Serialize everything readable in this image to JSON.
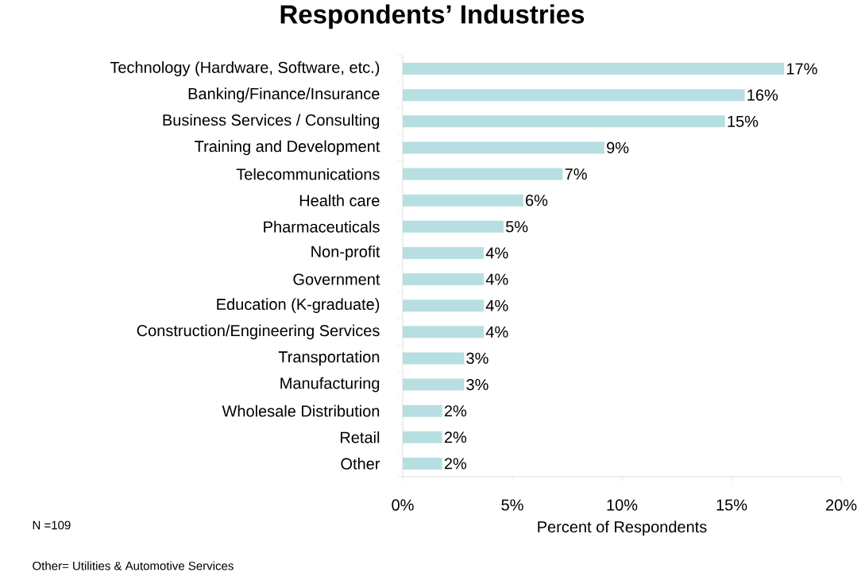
{
  "chart_data": {
    "type": "bar",
    "orientation": "horizontal",
    "title": "Respondents’ Industries",
    "categories": [
      "Technology (Hardware, Software, etc.)",
      "Banking/Finance/Insurance",
      "Business Services / Consulting",
      "Training and Development",
      "Telecommunications",
      "Health care",
      "Pharmaceuticals",
      "Non-profit",
      "Government",
      "Education (K-graduate)",
      "Construction/Engineering Services",
      "Transportation",
      "Manufacturing",
      "Wholesale Distribution",
      "Retail",
      "Other"
    ],
    "values": [
      17.4,
      15.6,
      14.7,
      9.2,
      7.3,
      5.5,
      4.6,
      3.7,
      3.7,
      3.7,
      3.7,
      2.8,
      2.8,
      1.8,
      1.8,
      1.8
    ],
    "value_labels": [
      "17%",
      "16%",
      "15%",
      "9%",
      "7%",
      "6%",
      "5%",
      "4%",
      "4%",
      "4%",
      "4%",
      "3%",
      "3%",
      "2%",
      "2%",
      "2%"
    ],
    "color": "#b7dfe2",
    "xlabel": "Percent of Respondents",
    "xlim": [
      0,
      20
    ],
    "xticks": [
      {
        "value": 0,
        "label": "0%"
      },
      {
        "value": 5,
        "label": "5%"
      },
      {
        "value": 10,
        "label": "10%"
      },
      {
        "value": 15,
        "label": "15%"
      },
      {
        "value": 20,
        "label": "20%"
      }
    ],
    "grid": false,
    "annotations": [
      "N =109",
      "Other= Utilities & Automotive Services"
    ]
  }
}
